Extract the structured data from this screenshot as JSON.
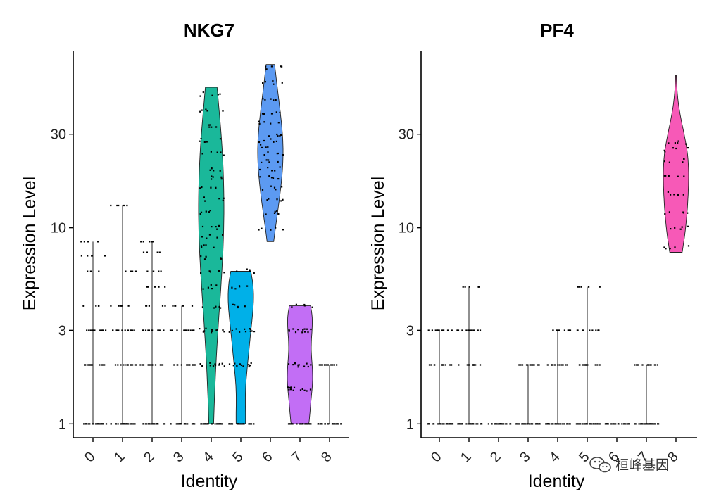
{
  "watermark": {
    "text": "桓峰基因",
    "icon": "wechat-icon"
  },
  "chart_data": [
    {
      "type": "violin",
      "title": "NKG7",
      "xlabel": "Identity",
      "ylabel": "Expression Level",
      "yscale": "log",
      "yticks": [
        1,
        3,
        10,
        30
      ],
      "ytick_labels": [
        "1",
        "3",
        "10",
        "30"
      ],
      "ylim": [
        0.85,
        80
      ],
      "categories": [
        "0",
        "1",
        "2",
        "3",
        "4",
        "5",
        "6",
        "7",
        "8"
      ],
      "groups": [
        {
          "identity": "0",
          "min": 1,
          "max": 8.5,
          "color": null,
          "levels": [
            1,
            2,
            3,
            4,
            6,
            7.2,
            8.5
          ]
        },
        {
          "identity": "1",
          "min": 1,
          "max": 13,
          "color": null,
          "levels": [
            1,
            2,
            3,
            4,
            6,
            13
          ]
        },
        {
          "identity": "2",
          "min": 1,
          "max": 8.5,
          "color": null,
          "levels": [
            1,
            2,
            3,
            4,
            5,
            6,
            7.5,
            8.5
          ]
        },
        {
          "identity": "3",
          "min": 1,
          "max": 4,
          "color": null,
          "levels": [
            1,
            2,
            3,
            4
          ]
        },
        {
          "identity": "4",
          "min": 1,
          "max": 52,
          "color": "#1ab89a",
          "levels": [
            1,
            2,
            3,
            4,
            5,
            6,
            7,
            8,
            9,
            10,
            12,
            14,
            16,
            18,
            20,
            24,
            28,
            33,
            40,
            48
          ]
        },
        {
          "identity": "5",
          "min": 1,
          "max": 6,
          "color": "#00b0e8",
          "levels": [
            1,
            2,
            3,
            4,
            5,
            6
          ]
        },
        {
          "identity": "6",
          "min": 8.5,
          "max": 68,
          "color": "#5c9af2",
          "levels": [
            10,
            12,
            14,
            16,
            18,
            20,
            22,
            24,
            26,
            28,
            30,
            34,
            38,
            45,
            55,
            65
          ]
        },
        {
          "identity": "7",
          "min": 1,
          "max": 4,
          "color": "#c26ef5",
          "levels": [
            1,
            1.5,
            2,
            3,
            4
          ]
        },
        {
          "identity": "8",
          "min": 1,
          "max": 2,
          "color": null,
          "levels": [
            1,
            2
          ]
        }
      ]
    },
    {
      "type": "violin",
      "title": "PF4",
      "xlabel": "Identity",
      "ylabel": "Expression Level",
      "yscale": "log",
      "yticks": [
        1,
        3,
        10,
        30
      ],
      "ytick_labels": [
        "1",
        "3",
        "10",
        "30"
      ],
      "ylim": [
        0.85,
        80
      ],
      "categories": [
        "0",
        "1",
        "2",
        "3",
        "4",
        "5",
        "6",
        "7",
        "8"
      ],
      "groups": [
        {
          "identity": "0",
          "min": 1,
          "max": 3,
          "color": null,
          "levels": [
            1,
            2,
            3
          ]
        },
        {
          "identity": "1",
          "min": 1,
          "max": 5,
          "color": null,
          "levels": [
            1,
            2,
            3,
            5
          ]
        },
        {
          "identity": "2",
          "min": 1,
          "max": 1,
          "color": null,
          "levels": [
            1
          ]
        },
        {
          "identity": "3",
          "min": 1,
          "max": 2,
          "color": null,
          "levels": [
            1,
            2
          ]
        },
        {
          "identity": "4",
          "min": 1,
          "max": 3,
          "color": null,
          "levels": [
            1,
            2,
            3
          ]
        },
        {
          "identity": "5",
          "min": 1,
          "max": 5,
          "color": null,
          "levels": [
            1,
            2,
            3,
            5
          ]
        },
        {
          "identity": "6",
          "min": 1,
          "max": 1,
          "color": null,
          "levels": [
            1
          ]
        },
        {
          "identity": "7",
          "min": 1,
          "max": 2,
          "color": null,
          "levels": [
            1,
            2
          ]
        },
        {
          "identity": "8",
          "min": 7.5,
          "max": 60,
          "color": "#f759b7",
          "levels": [
            8,
            10,
            12,
            15,
            18,
            22,
            25,
            27
          ]
        }
      ]
    }
  ]
}
